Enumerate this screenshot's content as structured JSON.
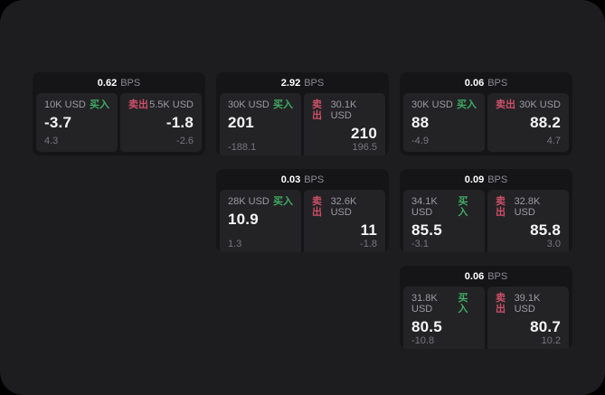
{
  "labels": {
    "bps_unit": "BPS",
    "buy": "买入",
    "sell": "卖出"
  },
  "colors": {
    "buy": "#3fab63",
    "sell": "#cc4f67",
    "window_bg": "#1d1d1f",
    "card_bg": "#151517",
    "panel_bg": "#232326"
  },
  "cards": [
    {
      "bps": "0.62",
      "buy": {
        "amount": "10K USD",
        "price": "-3.7",
        "sub": "4.3"
      },
      "sell": {
        "amount": "5.5K USD",
        "price": "-1.8",
        "sub": "-2.6"
      }
    },
    {
      "bps": "2.92",
      "buy": {
        "amount": "30K USD",
        "price": "201",
        "sub": "-188.1"
      },
      "sell": {
        "amount": "30.1K USD",
        "price": "210",
        "sub": "196.5"
      }
    },
    {
      "bps": "0.06",
      "buy": {
        "amount": "30K USD",
        "price": "88",
        "sub": "-4.9"
      },
      "sell": {
        "amount": "30K USD",
        "price": "88.2",
        "sub": "4.7"
      }
    },
    {
      "bps": "0.03",
      "buy": {
        "amount": "28K USD",
        "price": "10.9",
        "sub": "1.3"
      },
      "sell": {
        "amount": "32.6K USD",
        "price": "11",
        "sub": "-1.8"
      }
    },
    {
      "bps": "0.09",
      "buy": {
        "amount": "34.1K USD",
        "price": "85.5",
        "sub": "-3.1"
      },
      "sell": {
        "amount": "32.8K USD",
        "price": "85.8",
        "sub": "3.0"
      }
    },
    {
      "bps": "0.06",
      "buy": {
        "amount": "31.8K USD",
        "price": "80.5",
        "sub": "-10.8"
      },
      "sell": {
        "amount": "39.1K USD",
        "price": "80.7",
        "sub": "10.2"
      }
    }
  ]
}
